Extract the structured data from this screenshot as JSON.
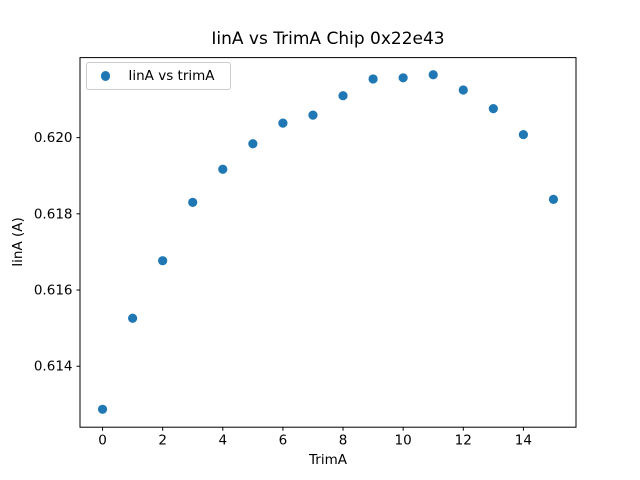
{
  "figure": {
    "background": "#ffffff"
  },
  "chart_data": {
    "type": "scatter",
    "title": "IinA vs TrimA Chip 0x22e43",
    "xlabel": "TrimA",
    "ylabel": "IinA (A)",
    "xlim": [
      -0.75,
      15.75
    ],
    "ylim": [
      0.6124,
      0.6221
    ],
    "xticks": [
      0,
      2,
      4,
      6,
      8,
      10,
      12,
      14
    ],
    "yticks": [
      0.614,
      0.616,
      0.618,
      0.62
    ],
    "ytick_decimals": 3,
    "grid": false,
    "legend_position": "upper left",
    "axis_color": "#000000",
    "text_color": "#000000",
    "series": [
      {
        "name": "IinA vs trimA",
        "marker": "o",
        "color": "#1f77b4",
        "x": [
          0,
          1,
          2,
          3,
          4,
          5,
          6,
          7,
          8,
          9,
          10,
          11,
          12,
          13,
          14,
          15
        ],
        "y": [
          0.61287,
          0.61526,
          0.61677,
          0.6183,
          0.61917,
          0.61984,
          0.62038,
          0.62059,
          0.6211,
          0.62154,
          0.62157,
          0.62165,
          0.62125,
          0.62076,
          0.62008,
          0.61838
        ]
      }
    ]
  }
}
